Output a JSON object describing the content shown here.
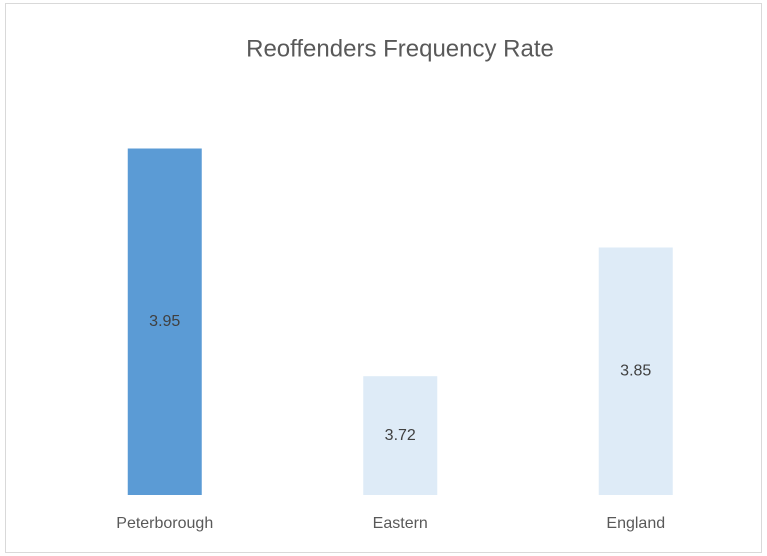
{
  "chart_data": {
    "type": "bar",
    "title": "Reoffenders Frequency Rate",
    "categories": [
      "Peterborough",
      "Eastern",
      "England"
    ],
    "values": [
      3.95,
      3.72,
      3.85
    ],
    "colors": [
      "#5b9bd5",
      "#deebf7",
      "#deebf7"
    ],
    "ylim": [
      3.6,
      4.0
    ]
  }
}
